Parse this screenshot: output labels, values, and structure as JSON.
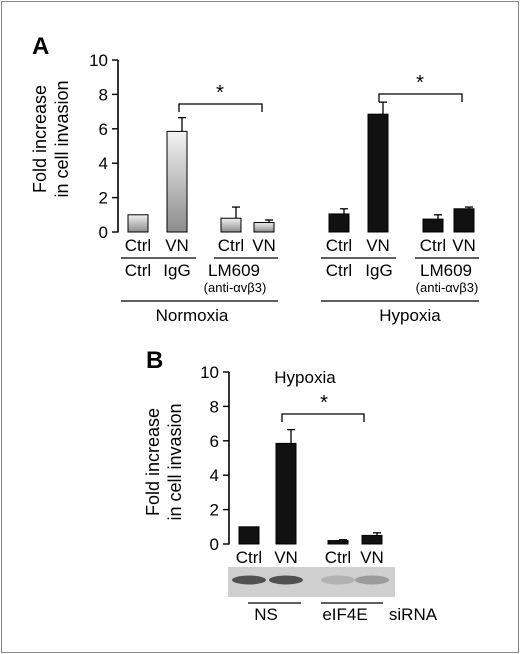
{
  "colors": {
    "bar_dark": "#111111",
    "bar_light_top": "#f2f2f2",
    "bar_light_bottom": "#8c8c8c",
    "blot_bg": "#cfcfcf"
  },
  "chart_data": [
    {
      "panel": "A",
      "type": "bar",
      "ylabel": [
        "Fold increase",
        "in cell invasion"
      ],
      "ylim": [
        0,
        10
      ],
      "yticks": [
        0,
        2,
        4,
        6,
        8,
        10
      ],
      "categories": [
        "Ctrl",
        "VN",
        "Ctrl",
        "VN",
        "Ctrl",
        "VN",
        "Ctrl",
        "VN"
      ],
      "values": [
        1.0,
        5.85,
        0.8,
        0.55,
        1.05,
        6.85,
        0.75,
        1.35
      ],
      "errors": [
        0.0,
        0.8,
        0.65,
        0.15,
        0.3,
        0.7,
        0.25,
        0.1
      ],
      "styles": [
        "light",
        "light",
        "light",
        "light",
        "dark",
        "dark",
        "dark",
        "dark"
      ],
      "treatments": [
        {
          "label": "Ctrl",
          "sub": ""
        },
        {
          "label": "IgG",
          "sub": ""
        },
        {
          "label": "LM609",
          "sub": "(anti-αvβ3)"
        },
        {
          "label": "Ctrl",
          "sub": ""
        },
        {
          "label": "IgG",
          "sub": ""
        },
        {
          "label": "LM609",
          "sub": "(anti-αvβ3)"
        }
      ],
      "conditions": [
        "Normoxia",
        "Hypoxia"
      ],
      "significance": [
        "*",
        "*"
      ]
    },
    {
      "panel": "B",
      "type": "bar",
      "title": "Hypoxia",
      "ylabel": [
        "Fold increase",
        "in cell invasion"
      ],
      "ylim": [
        0,
        10
      ],
      "yticks": [
        0,
        2,
        4,
        6,
        8,
        10
      ],
      "categories": [
        "Ctrl",
        "VN",
        "Ctrl",
        "VN"
      ],
      "values": [
        1.0,
        5.85,
        0.2,
        0.5
      ],
      "errors": [
        0.0,
        0.8,
        0.05,
        0.15
      ],
      "styles": [
        "dark",
        "dark",
        "dark",
        "dark"
      ],
      "blot_intensity": [
        1.0,
        1.0,
        0.35,
        0.5
      ],
      "treatments": [
        "NS",
        "eIF4E"
      ],
      "treatment_suffix": "siRNA",
      "significance": [
        "*"
      ]
    }
  ]
}
